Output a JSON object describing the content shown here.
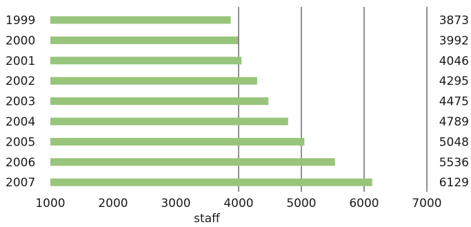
{
  "chart_data": {
    "type": "bar",
    "orientation": "horizontal",
    "categories": [
      "1999",
      "2000",
      "2001",
      "2002",
      "2003",
      "2004",
      "2005",
      "2006",
      "2007"
    ],
    "values": [
      3873,
      3992,
      4046,
      4295,
      4475,
      4789,
      5048,
      5536,
      6129
    ],
    "value_labels": [
      "3873",
      "3992",
      "4046",
      "4295",
      "4475",
      "4789",
      "5048",
      "5536",
      "6129"
    ],
    "xlabel": "staff",
    "xlim": [
      1000,
      7000
    ],
    "xticks": [
      "1000",
      "2000",
      "3000",
      "4000",
      "5000",
      "6000",
      "7000"
    ],
    "gridlines": [
      4000,
      5000,
      6000
    ],
    "value_labels_position": "right",
    "bar_color": "#99c47b",
    "grid_color": "#222222"
  }
}
